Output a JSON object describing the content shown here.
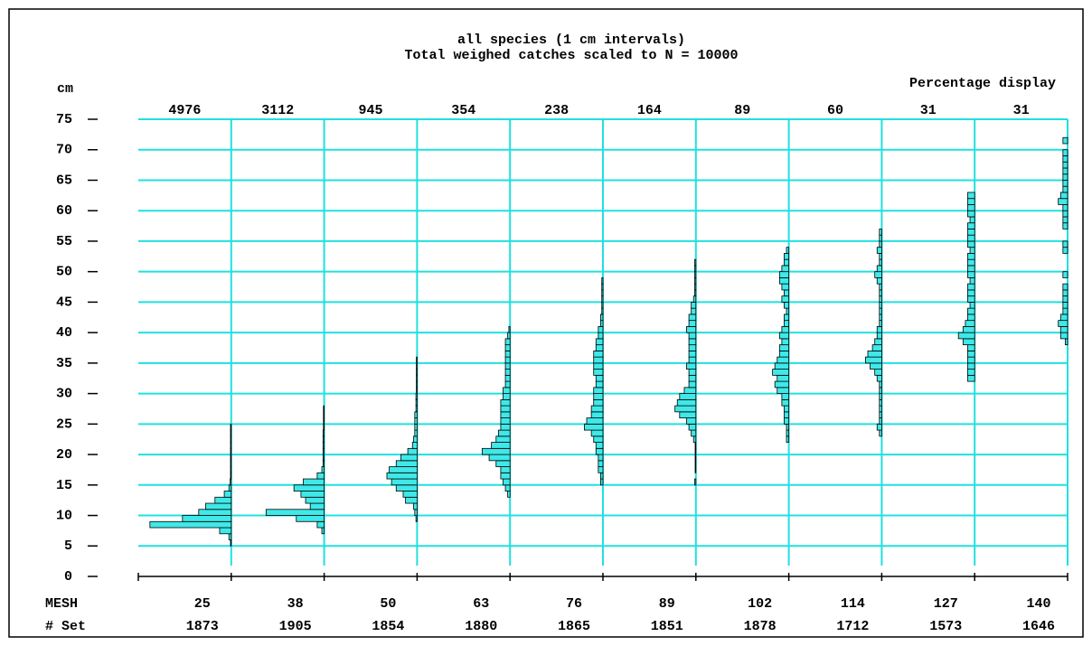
{
  "chart_data": {
    "type": "histogram",
    "title": "all species (1 cm intervals)",
    "subtitle": "Total weighed catches scaled to N = 10000",
    "y_label": "cm",
    "annotation": "Percentage display",
    "row_labels": [
      "MESH",
      "# Set"
    ],
    "ylim": [
      0,
      75
    ],
    "yticks": [
      0,
      5,
      10,
      15,
      20,
      25,
      30,
      35,
      40,
      45,
      50,
      55,
      60,
      65,
      70,
      75
    ],
    "xlim": [
      0,
      40
    ],
    "color": "#40e8e8",
    "grid": true,
    "panels": [
      {
        "n": 4976,
        "mesh": 25,
        "sets": 1873,
        "bins": [
          5,
          6,
          7,
          8,
          9,
          10,
          11,
          12,
          13,
          14,
          15,
          16,
          17,
          18,
          19,
          20,
          21,
          22,
          23,
          24,
          25
        ],
        "values": [
          0.3,
          1,
          5,
          35,
          21,
          14,
          11,
          7,
          3,
          1,
          0.5,
          0.3,
          0.3,
          0.3,
          0.3,
          0.3,
          0.3,
          0.3,
          0.3,
          0.3
        ]
      },
      {
        "n": 3112,
        "mesh": 38,
        "sets": 1905,
        "bins": [
          7,
          8,
          9,
          10,
          11,
          12,
          13,
          14,
          15,
          16,
          17,
          18,
          19,
          20,
          21,
          22,
          23,
          24,
          25,
          26,
          27,
          28
        ],
        "values": [
          1,
          3,
          12,
          25,
          6,
          8,
          10,
          13,
          9,
          3,
          1,
          0.5,
          0.5,
          0.5,
          0.5,
          0.5,
          0.5,
          0.3,
          0.3,
          0.3,
          0.3
        ]
      },
      {
        "n": 945,
        "mesh": 50,
        "sets": 1854,
        "bins": [
          9,
          10,
          11,
          12,
          13,
          14,
          15,
          16,
          17,
          18,
          19,
          20,
          21,
          22,
          23,
          24,
          25,
          26,
          27,
          28,
          29,
          30,
          31,
          32,
          33,
          34,
          35,
          36
        ],
        "values": [
          0.5,
          1,
          1.5,
          5,
          6,
          9,
          11,
          13,
          12,
          9,
          7,
          4,
          2,
          1.5,
          1,
          1,
          1,
          1,
          0.5,
          0.5,
          0.5,
          0.3,
          0.3,
          0.3,
          0.3,
          0.3,
          0.3
        ]
      },
      {
        "n": 354,
        "mesh": 63,
        "sets": 1880,
        "bins": [
          13,
          14,
          15,
          16,
          17,
          18,
          19,
          20,
          21,
          22,
          23,
          24,
          25,
          26,
          27,
          28,
          29,
          30,
          31,
          32,
          33,
          34,
          35,
          36,
          37,
          38,
          39,
          40,
          41
        ],
        "values": [
          1,
          2,
          3,
          4,
          4,
          6,
          9,
          12,
          8,
          6,
          5,
          4,
          4,
          4,
          4,
          4,
          3,
          3,
          2,
          2,
          2,
          2,
          2,
          2,
          2,
          2,
          1,
          0.5
        ]
      },
      {
        "n": 238,
        "mesh": 76,
        "sets": 1865,
        "bins": [
          15,
          16,
          17,
          18,
          19,
          20,
          21,
          22,
          23,
          24,
          25,
          26,
          27,
          28,
          29,
          30,
          31,
          32,
          33,
          34,
          35,
          36,
          37,
          38,
          39,
          40,
          41,
          42,
          43,
          44,
          45,
          46,
          47,
          48,
          49
        ],
        "values": [
          1,
          1,
          2,
          2,
          2,
          3,
          3,
          4,
          5,
          8,
          7,
          5,
          5,
          4,
          4,
          4,
          3,
          3,
          4,
          4,
          4,
          4,
          3,
          3,
          2,
          2,
          1,
          1,
          0.5,
          0.5,
          0.5,
          0.5,
          0.5,
          0.5
        ]
      },
      {
        "n": 164,
        "mesh": 89,
        "sets": 1851,
        "bins": [
          15,
          16,
          17,
          18,
          19,
          20,
          21,
          22,
          23,
          24,
          25,
          26,
          27,
          28,
          29,
          30,
          31,
          32,
          33,
          34,
          35,
          36,
          37,
          38,
          39,
          40,
          41,
          42,
          43,
          44,
          45,
          46,
          47,
          48,
          49,
          50,
          51,
          52
        ],
        "values": [
          0.5,
          0,
          0.3,
          0.3,
          0.3,
          0.3,
          0.3,
          1,
          2,
          3,
          4,
          7,
          9,
          8,
          7,
          5,
          3,
          3,
          3,
          4,
          3,
          3,
          3,
          3,
          3,
          4,
          3,
          3,
          2,
          2,
          1,
          0.5,
          0.5,
          0.5,
          0.5,
          0.5,
          0.5
        ]
      },
      {
        "n": 89,
        "mesh": 102,
        "sets": 1878,
        "bins": [
          22,
          23,
          24,
          25,
          26,
          27,
          28,
          29,
          30,
          31,
          32,
          33,
          34,
          35,
          36,
          37,
          38,
          39,
          40,
          41,
          42,
          43,
          44,
          45,
          46,
          47,
          48,
          49,
          50,
          51,
          52,
          53,
          54
        ],
        "values": [
          1,
          1,
          1,
          2,
          2,
          2,
          3,
          3,
          5,
          6,
          5,
          7,
          6,
          5,
          4,
          4,
          3,
          4,
          3,
          2,
          2,
          1,
          2,
          3,
          2,
          3,
          4,
          4,
          3,
          2,
          2,
          1
        ]
      },
      {
        "n": 60,
        "mesh": 114,
        "sets": 1712,
        "bins": [
          23,
          24,
          25,
          26,
          27,
          28,
          29,
          30,
          31,
          32,
          33,
          34,
          35,
          36,
          37,
          38,
          39,
          40,
          41,
          42,
          43,
          44,
          45,
          46,
          47,
          48,
          49,
          50,
          51,
          52,
          53,
          54,
          55,
          56,
          57
        ],
        "values": [
          1,
          2,
          1,
          1,
          1,
          1,
          1,
          1,
          1,
          2,
          3,
          5,
          7,
          6,
          4,
          3,
          2,
          2,
          1,
          1,
          1,
          1,
          1,
          1,
          1,
          2,
          3,
          2,
          1,
          1,
          2,
          1,
          1,
          1
        ]
      },
      {
        "n": 31,
        "mesh": 127,
        "sets": 1573,
        "bins": [
          32,
          33,
          34,
          35,
          36,
          37,
          38,
          39,
          40,
          41,
          42,
          43,
          44,
          45,
          46,
          47,
          48,
          49,
          50,
          51,
          52,
          53,
          54,
          55,
          56,
          57,
          58,
          59,
          60,
          61,
          62,
          63
        ],
        "values": [
          3,
          3,
          3,
          3,
          3,
          3,
          5,
          7,
          5,
          4,
          3,
          3,
          2,
          3,
          3,
          3,
          2,
          3,
          3,
          3,
          3,
          2,
          3,
          3,
          3,
          3,
          2,
          3,
          3,
          3,
          3
        ]
      },
      {
        "n": 31,
        "mesh": 140,
        "sets": 1646,
        "bins": [
          38,
          39,
          40,
          41,
          42,
          43,
          44,
          45,
          46,
          47,
          48,
          49,
          50,
          51,
          52,
          53,
          54,
          55,
          56,
          57,
          58,
          59,
          60,
          61,
          62,
          63,
          64,
          65,
          66,
          67,
          68,
          69,
          70,
          71,
          72
        ],
        "values": [
          1,
          3,
          3,
          4,
          3,
          2,
          2,
          2,
          2,
          2,
          0,
          2,
          0,
          0,
          0,
          2,
          2,
          0,
          0,
          2,
          2,
          2,
          2,
          4,
          3,
          2,
          2,
          2,
          2,
          2,
          2,
          2,
          0,
          2
        ]
      }
    ]
  }
}
